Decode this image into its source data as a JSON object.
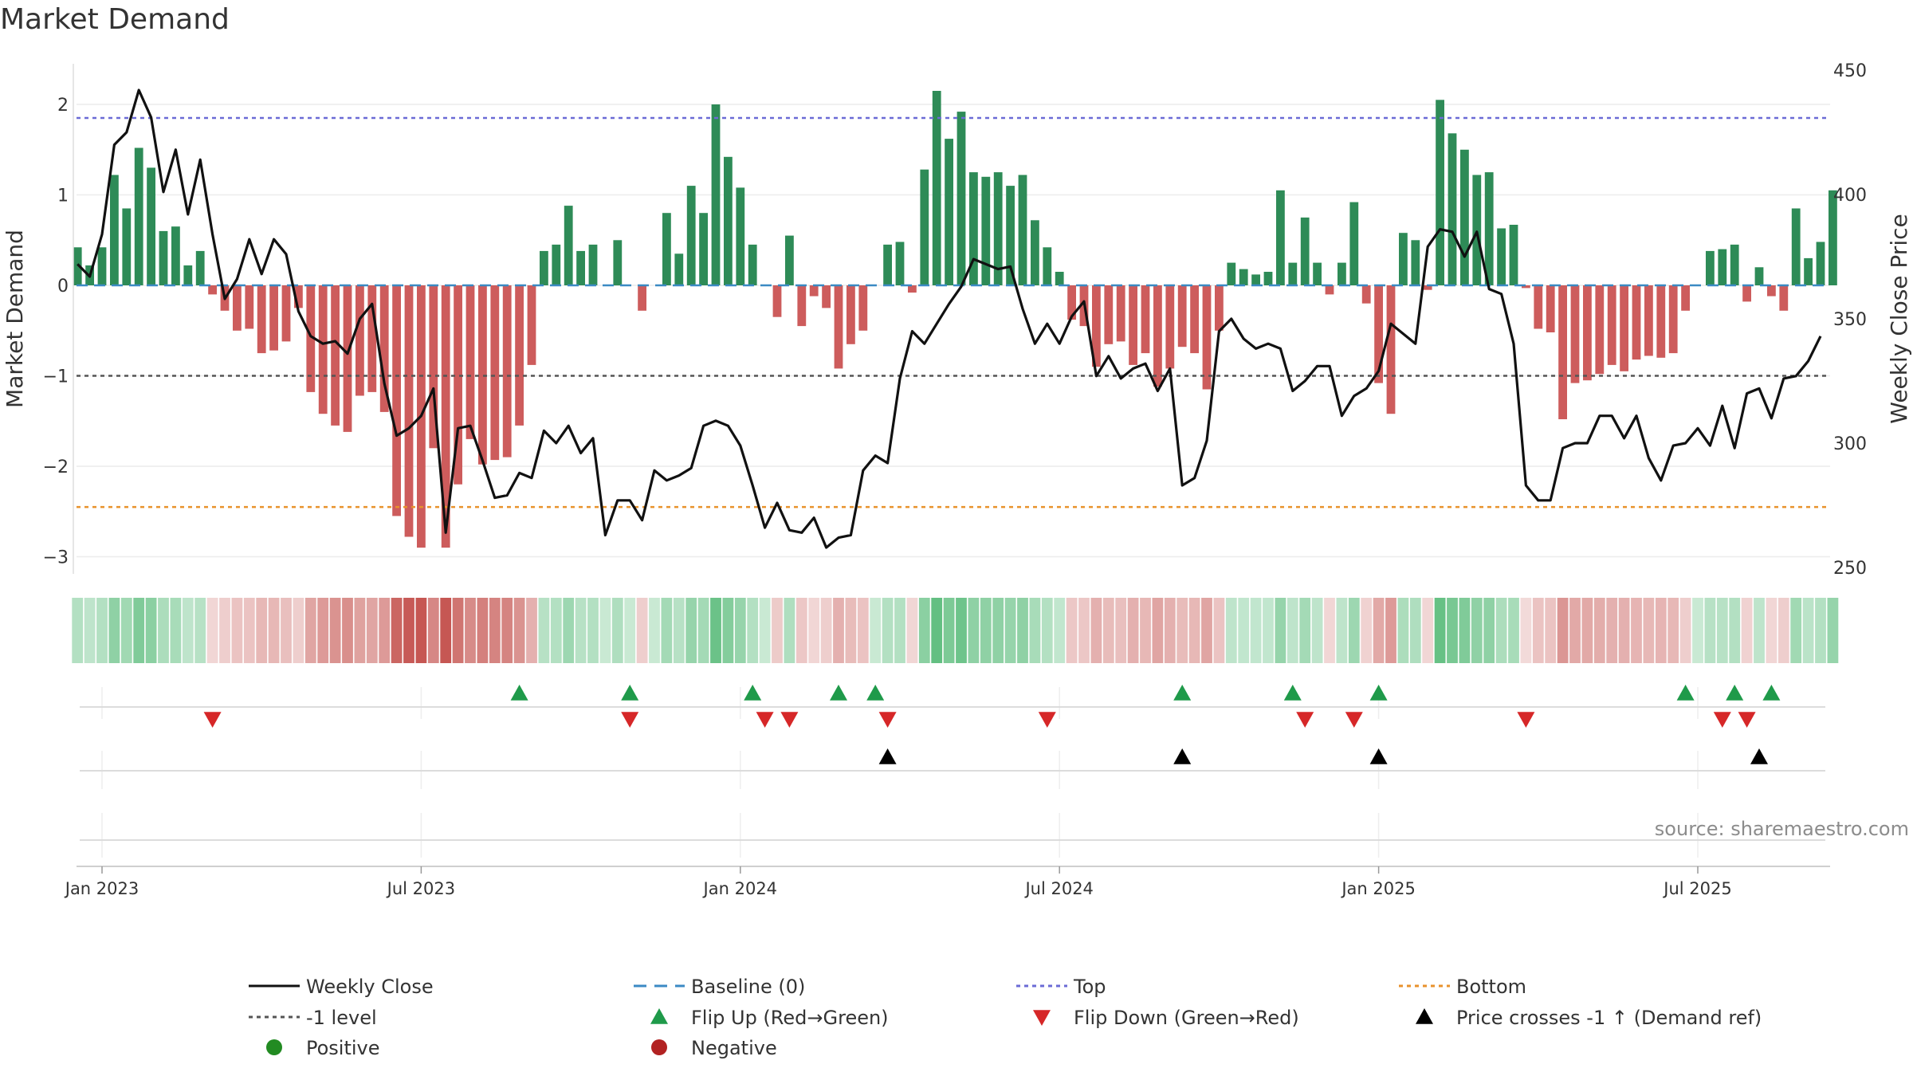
{
  "chart_data": {
    "type": "bar+line",
    "title": "Market Demand",
    "ylabel_left": "Market Demand",
    "ylabel_right": "Weekly Close Price",
    "ylim_left": [
      -3.2,
      2.45
    ],
    "ylim_right": [
      245,
      450
    ],
    "yticks_left": [
      "2",
      "1",
      "0",
      "−1",
      "−2",
      "−3"
    ],
    "yticks_left_values": [
      2,
      1,
      0,
      -1,
      -2,
      -3
    ],
    "yticks_right": [
      "450",
      "400",
      "350",
      "300",
      "250"
    ],
    "yticks_right_values": [
      450,
      400,
      350,
      300,
      250
    ],
    "x_tick_labels": [
      "Jan 2023",
      "Jul 2023",
      "Jan 2024",
      "Jul 2024",
      "Jan 2025",
      "Jul 2025"
    ],
    "x_tick_weeks": [
      0,
      26,
      52,
      78,
      104,
      130
    ],
    "levels": {
      "top": 1.85,
      "bottom": -2.45,
      "minus_one": -1,
      "baseline": 0
    },
    "start_week": -2,
    "demand": [
      0.42,
      0.22,
      0.42,
      1.22,
      0.85,
      1.52,
      1.3,
      0.6,
      0.65,
      0.22,
      0.38,
      -0.1,
      -0.28,
      -0.5,
      -0.48,
      -0.75,
      -0.72,
      -0.62,
      -0.25,
      -1.18,
      -1.42,
      -1.55,
      -1.62,
      -1.22,
      -1.18,
      -1.4,
      -2.55,
      -2.78,
      -2.9,
      -1.8,
      -2.9,
      -2.2,
      -1.7,
      -1.98,
      -1.93,
      -1.9,
      -1.55,
      -0.88,
      0.38,
      0.45,
      0.88,
      0.38,
      0.45,
      0.0,
      0.5,
      0.0,
      -0.28,
      0.0,
      0.8,
      0.35,
      1.1,
      0.8,
      2.0,
      1.42,
      1.08,
      0.45,
      0.0,
      -0.35,
      0.55,
      -0.45,
      -0.12,
      -0.25,
      -0.92,
      -0.65,
      -0.5,
      0.0,
      0.45,
      0.48,
      -0.08,
      1.28,
      2.15,
      1.62,
      1.92,
      1.25,
      1.2,
      1.25,
      1.1,
      1.22,
      0.72,
      0.42,
      0.15,
      -0.38,
      -0.45,
      -0.9,
      -0.65,
      -0.62,
      -0.88,
      -0.75,
      -1.12,
      -0.92,
      -0.68,
      -0.75,
      -1.15,
      -0.5,
      0.25,
      0.18,
      0.12,
      0.15,
      1.05,
      0.25,
      0.75,
      0.25,
      -0.1,
      0.25,
      0.92,
      -0.2,
      -1.08,
      -1.42,
      0.58,
      0.5,
      -0.05,
      2.05,
      1.68,
      1.5,
      1.22,
      1.25,
      0.63,
      0.67,
      -0.03,
      -0.48,
      -0.52,
      -1.48,
      -1.08,
      -1.05,
      -0.98,
      -0.88,
      -0.95,
      -0.82,
      -0.78,
      -0.8,
      -0.75,
      -0.28,
      0.0,
      0.38,
      0.4,
      0.45,
      -0.18,
      0.2,
      -0.12,
      -0.28,
      0.85,
      0.3,
      0.48,
      1.05
    ],
    "close": [
      372,
      367,
      384,
      420,
      425,
      442,
      431,
      401,
      418,
      392,
      414,
      384,
      358,
      366,
      382,
      368,
      382,
      376,
      353,
      343,
      340,
      341,
      336,
      350,
      356,
      324,
      303,
      306,
      311,
      322,
      264,
      306,
      307,
      293,
      278,
      279,
      288,
      286,
      305,
      300,
      307,
      296,
      302,
      263,
      277,
      277,
      269,
      289,
      285,
      287,
      290,
      307,
      309,
      307,
      299,
      283,
      266,
      276,
      265,
      264,
      270,
      258,
      262,
      263,
      289,
      295,
      292,
      326,
      345,
      340,
      348,
      356,
      363,
      374,
      372,
      370,
      371,
      354,
      340,
      348,
      340,
      351,
      357,
      327,
      335,
      326,
      330,
      332,
      321,
      330,
      283,
      286,
      301,
      345,
      350,
      342,
      338,
      340,
      338,
      321,
      325,
      331,
      331,
      311,
      319,
      322,
      329,
      348,
      344,
      340,
      379,
      386,
      385,
      375,
      385,
      362,
      360,
      340,
      283,
      277,
      277,
      298,
      300,
      300,
      311,
      311,
      302,
      311,
      294,
      285,
      299,
      300,
      306,
      299,
      315,
      298,
      320,
      322,
      310,
      326,
      327,
      333,
      343
    ],
    "flip_up_weeks": [
      34,
      43,
      53,
      60,
      63,
      88,
      97,
      104,
      129,
      133,
      136
    ],
    "flip_down_weeks": [
      9,
      43,
      54,
      56,
      64,
      77,
      98,
      102,
      116,
      132,
      134
    ],
    "price_cross_weeks": [
      64,
      88,
      104,
      135
    ],
    "source": "source: sharemaestro.com",
    "legend": [
      {
        "label": "Weekly Close",
        "kind": "line",
        "color": "#111111"
      },
      {
        "label": "Baseline (0)",
        "kind": "dash",
        "color": "#3b8ac4"
      },
      {
        "label": "Top",
        "kind": "dot",
        "color": "#6b6bd6"
      },
      {
        "label": "Bottom",
        "kind": "dot",
        "color": "#e8922c"
      },
      {
        "label": "-1 level",
        "kind": "dot",
        "color": "#555555"
      },
      {
        "label": "Flip Up (Red→Green)",
        "kind": "tri-up",
        "color": "#1f9a4a"
      },
      {
        "label": "Flip Down (Green→Red)",
        "kind": "tri-down",
        "color": "#d62728"
      },
      {
        "label": "Price crosses -1 ↑ (Demand ref)",
        "kind": "tri-up",
        "color": "#000000"
      },
      {
        "label": "Positive",
        "kind": "circle",
        "color": "#228b22"
      },
      {
        "label": "Negative",
        "kind": "circle",
        "color": "#b22222"
      }
    ],
    "colors": {
      "positive_bar": "#2e8b57",
      "negative_bar": "#cd5c5c",
      "top_line": "#6b6bd6",
      "bottom_line": "#e8922c",
      "minus_one_line": "#555555",
      "baseline": "#3b8ac4"
    }
  }
}
